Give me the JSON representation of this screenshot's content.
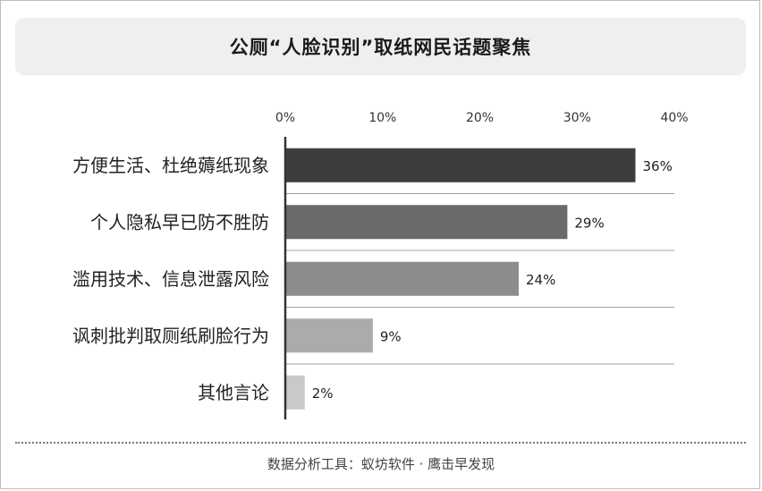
{
  "title": "公厕“人脸识别”取纸网民话题聚焦",
  "source": "数据分析工具：蚁坊软件 · 鹰击早发现",
  "chart_data": {
    "type": "bar",
    "orientation": "horizontal",
    "categories": [
      "方便生活、杜绝薅纸现象",
      "个人隐私早已防不胜防",
      "滥用技术、信息泄露风险",
      "讽刺批判取厕纸刷脸行为",
      "其他言论"
    ],
    "values": [
      36,
      29,
      24,
      9,
      2
    ],
    "value_labels": [
      "36%",
      "29%",
      "24%",
      "9%",
      "2%"
    ],
    "xlim": [
      0,
      40
    ],
    "ticks": [
      0,
      10,
      20,
      30,
      40
    ],
    "tick_labels": [
      "0%",
      "10%",
      "20%",
      "30%",
      "40%"
    ],
    "axis_position": "top",
    "grid": false,
    "colors": [
      "#3d3d3d",
      "#6a6a6a",
      "#8c8c8c",
      "#ababab",
      "#c9c9c9"
    ]
  }
}
